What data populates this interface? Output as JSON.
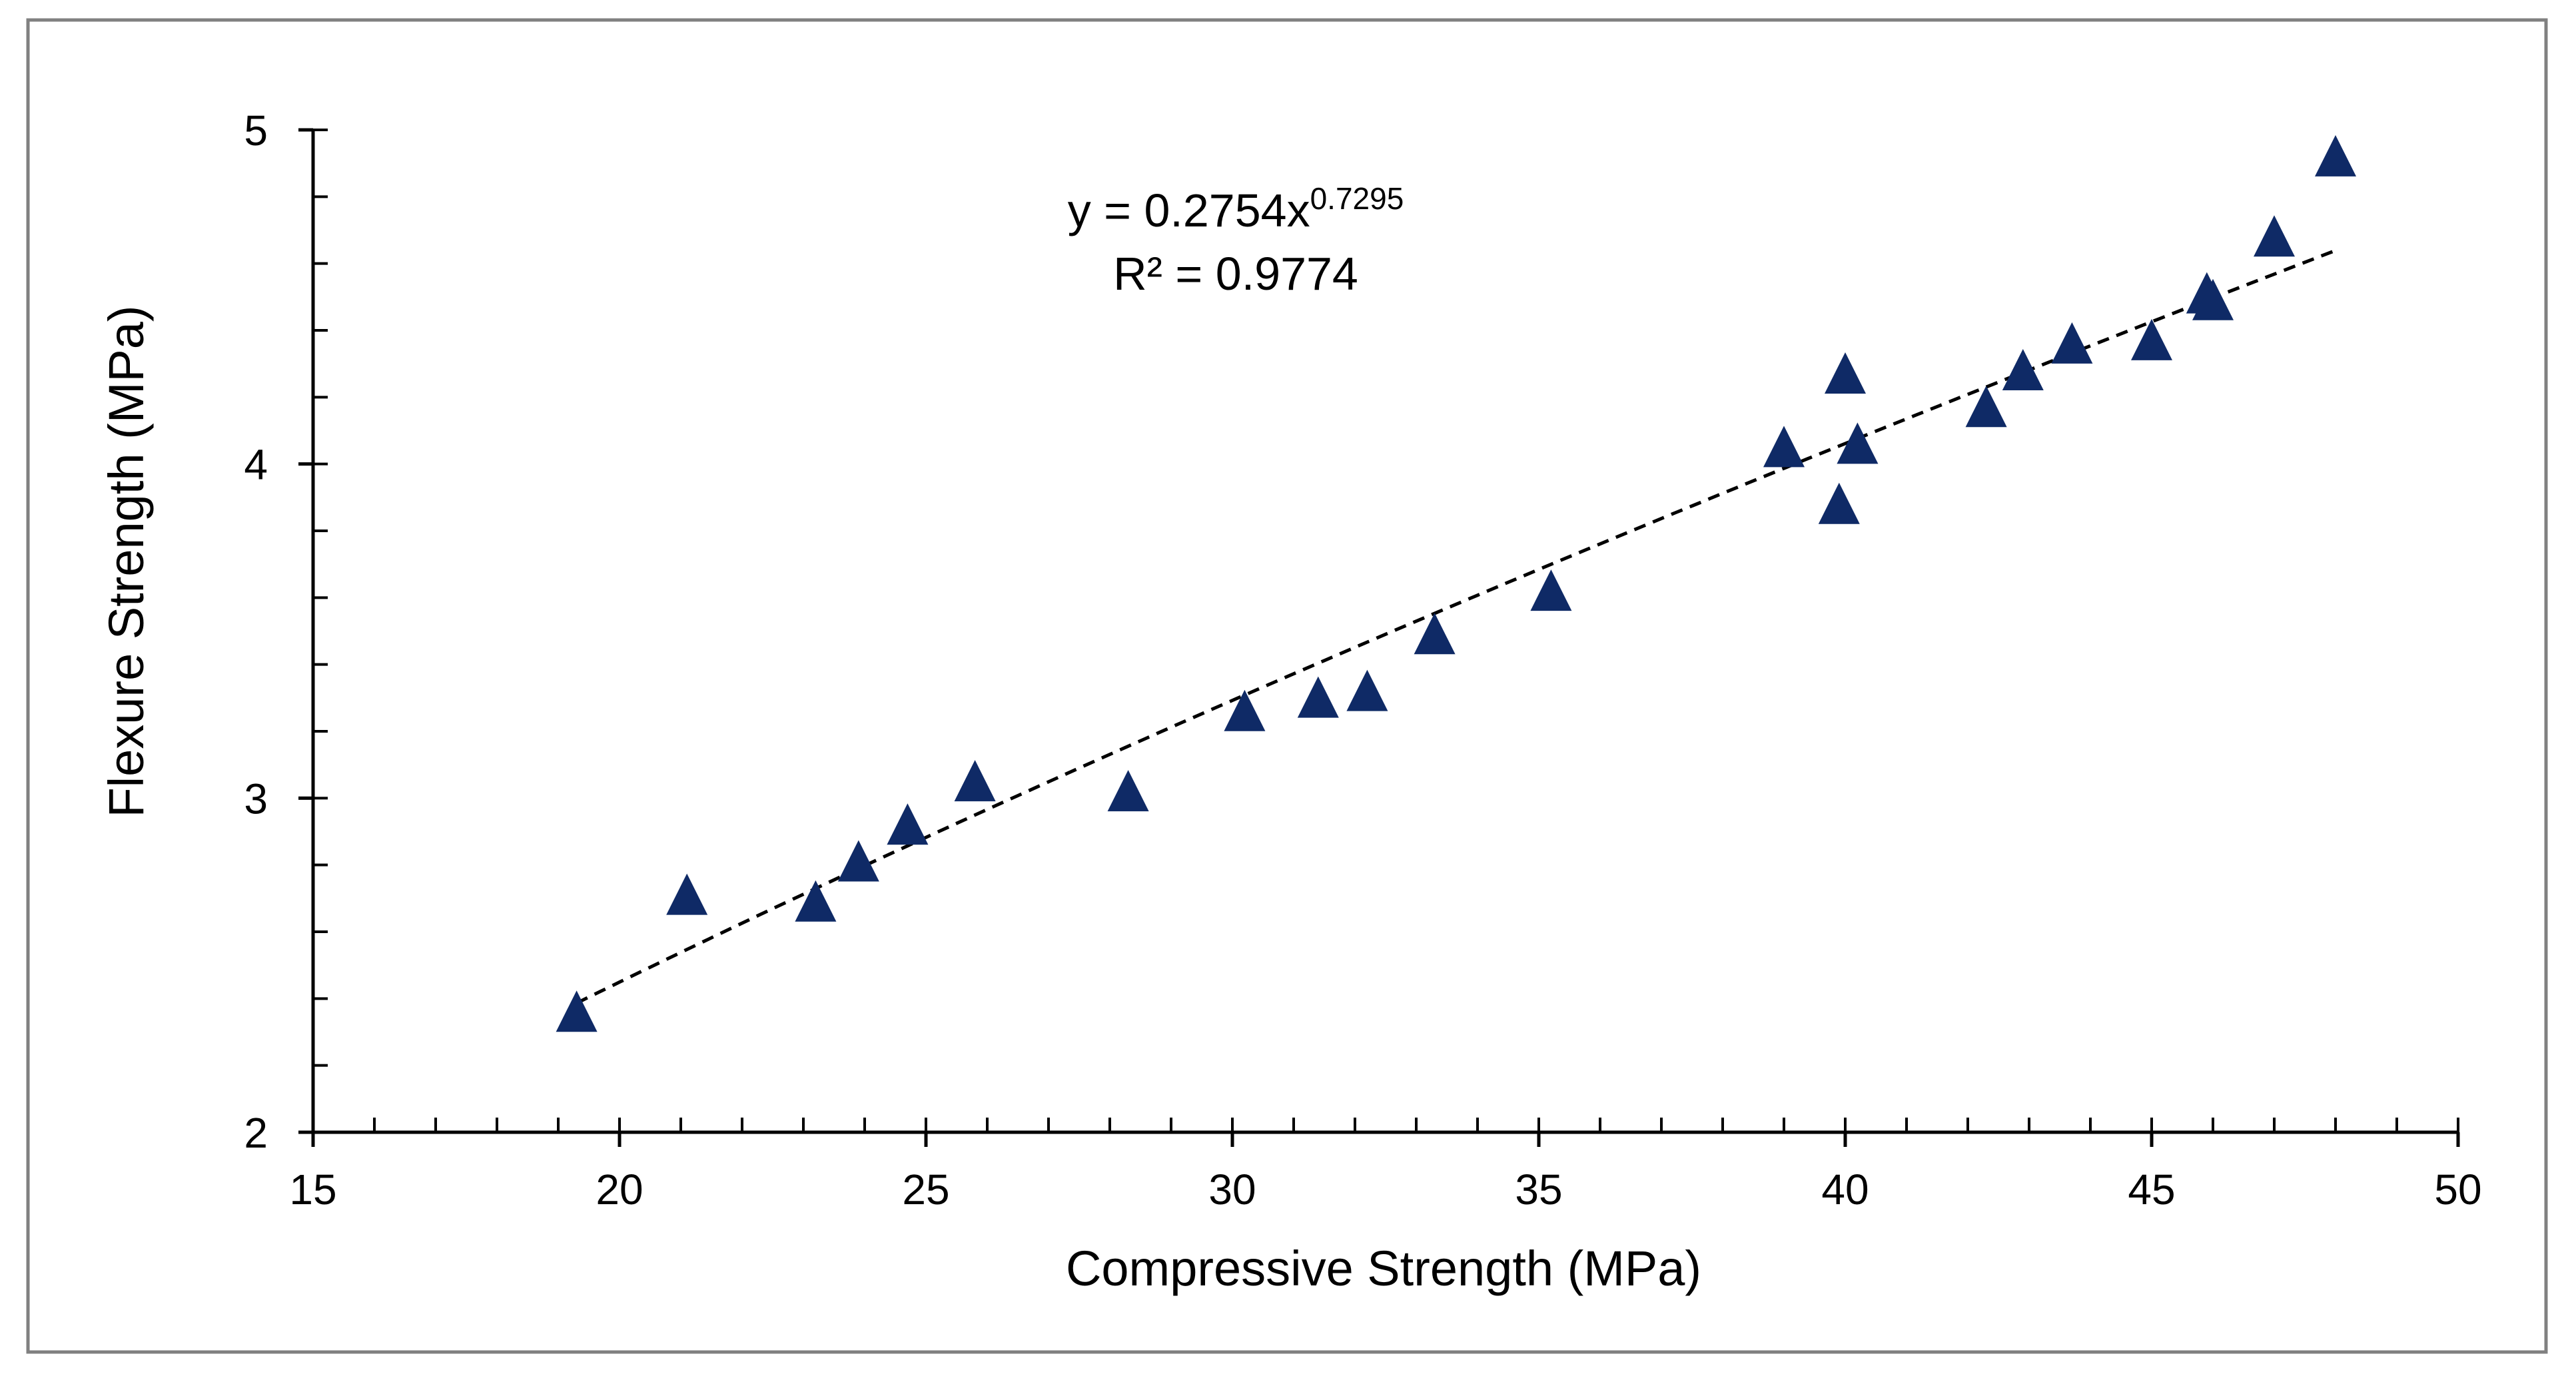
{
  "chart_data": {
    "type": "scatter",
    "xlabel": "Compressive Strength (MPa)",
    "ylabel": "Flexure Strength (MPa)",
    "xlim": [
      15,
      50
    ],
    "ylim": [
      2,
      5
    ],
    "x_ticks": [
      15,
      20,
      25,
      30,
      35,
      40,
      45,
      50
    ],
    "y_ticks": [
      2,
      3,
      4,
      5
    ],
    "x_minor_step": 1,
    "y_minor_step": 0.2,
    "grid": false,
    "colors": {
      "marker": "#0F2A66",
      "trendline": "#000000",
      "axis": "#000000",
      "frame": "#808080"
    },
    "series": [
      {
        "name": "Flexure vs Compressive",
        "marker": "triangle",
        "points": [
          [
            19.3,
            2.35
          ],
          [
            21.1,
            2.7
          ],
          [
            23.2,
            2.68
          ],
          [
            23.9,
            2.8
          ],
          [
            24.7,
            2.91
          ],
          [
            25.8,
            3.04
          ],
          [
            28.3,
            3.01
          ],
          [
            30.2,
            3.25
          ],
          [
            31.4,
            3.29
          ],
          [
            32.2,
            3.31
          ],
          [
            33.3,
            3.48
          ],
          [
            35.2,
            3.61
          ],
          [
            39.0,
            4.04
          ],
          [
            39.9,
            3.87
          ],
          [
            40.0,
            4.26
          ],
          [
            40.2,
            4.05
          ],
          [
            42.3,
            4.16
          ],
          [
            42.9,
            4.27
          ],
          [
            43.7,
            4.35
          ],
          [
            45.0,
            4.36
          ],
          [
            45.9,
            4.5
          ],
          [
            46.0,
            4.48
          ],
          [
            47.0,
            4.67
          ],
          [
            48.0,
            4.91
          ]
        ]
      }
    ],
    "trendline": {
      "type": "power",
      "a": 0.2754,
      "b": 0.7295,
      "x_from": 19.3,
      "x_to": 48.0,
      "style": "dashed"
    },
    "annotation": {
      "equation_prefix": "y = 0.2754x",
      "equation_exponent": "0.7295",
      "r_squared": "R² = 0.9774"
    }
  }
}
